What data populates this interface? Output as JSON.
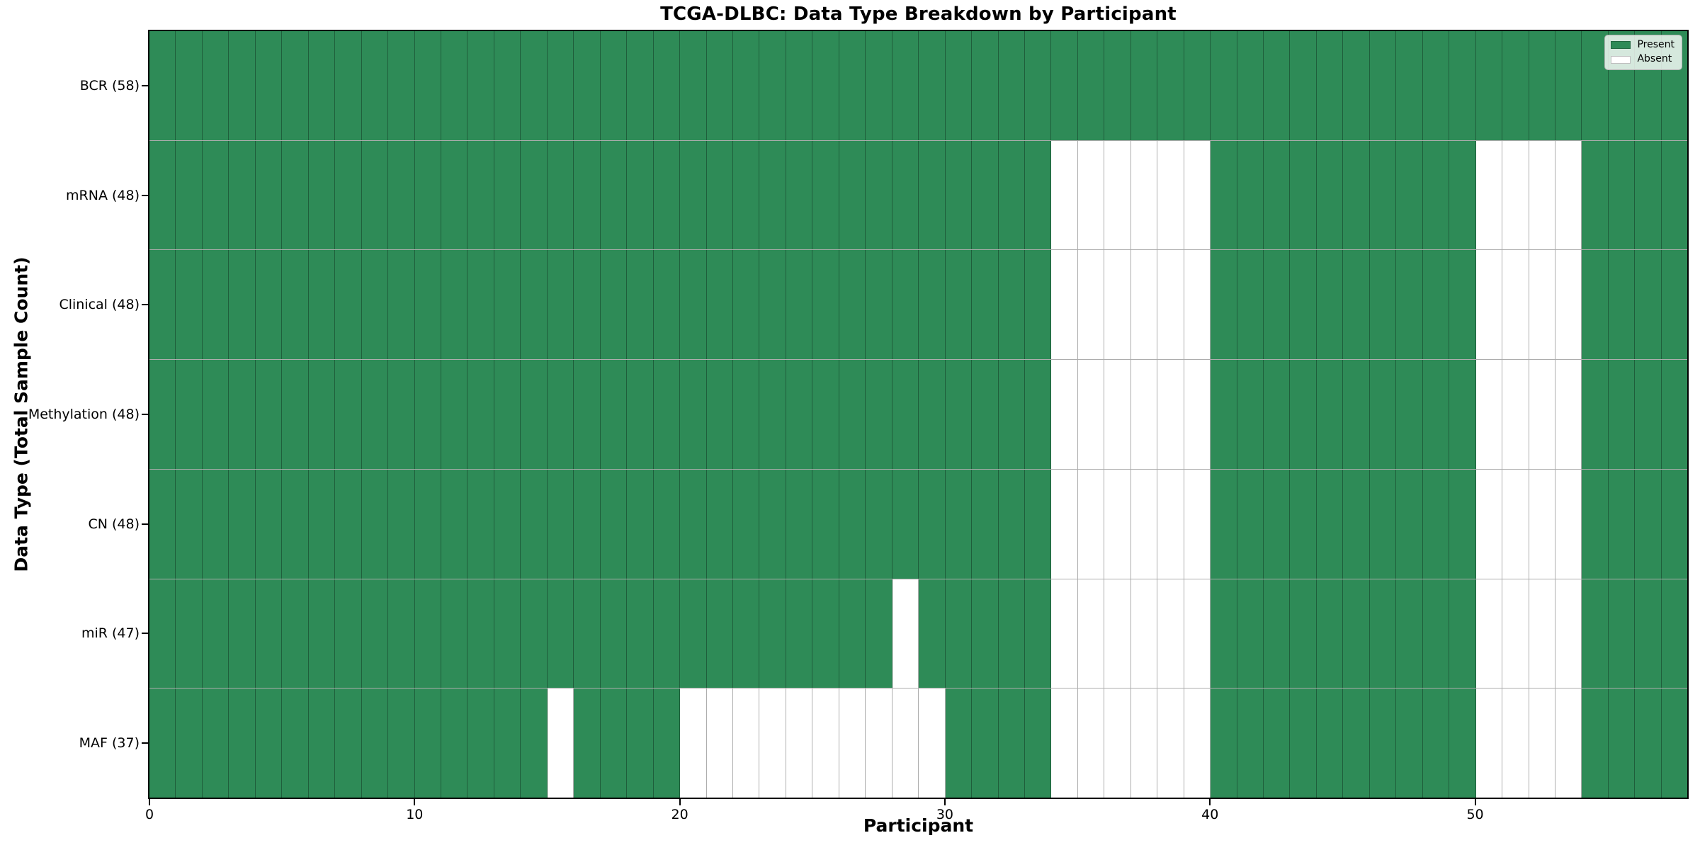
{
  "chart_data": {
    "type": "heatmap",
    "title": "TCGA-DLBC: Data Type Breakdown by Participant",
    "xlabel": "Participant",
    "ylabel": "Data Type (Total Sample Count)",
    "n_participants": 58,
    "x_range": [
      0,
      58
    ],
    "x_ticks": [
      0,
      10,
      20,
      30,
      40,
      50
    ],
    "grid": true,
    "legend": {
      "position": "upper right",
      "entries": [
        {
          "label": "Present",
          "color": "#2E8B57"
        },
        {
          "label": "Absent",
          "color": "#FFFFFF"
        }
      ]
    },
    "colors": {
      "present": "#2E8B57",
      "absent": "#FFFFFF"
    },
    "rows": [
      {
        "name": "bcr",
        "label": "BCR (58)",
        "total": 58,
        "absent": []
      },
      {
        "name": "mrna",
        "label": "mRNA (48)",
        "total": 48,
        "absent": [
          34,
          35,
          36,
          37,
          38,
          39,
          50,
          51,
          52,
          53
        ]
      },
      {
        "name": "clinical",
        "label": "Clinical (48)",
        "total": 48,
        "absent": [
          34,
          35,
          36,
          37,
          38,
          39,
          50,
          51,
          52,
          53
        ]
      },
      {
        "name": "methylation",
        "label": "Methylation (48)",
        "total": 48,
        "absent": [
          34,
          35,
          36,
          37,
          38,
          39,
          50,
          51,
          52,
          53
        ]
      },
      {
        "name": "cn",
        "label": "CN (48)",
        "total": 48,
        "absent": [
          34,
          35,
          36,
          37,
          38,
          39,
          50,
          51,
          52,
          53
        ]
      },
      {
        "name": "mir",
        "label": "miR (47)",
        "total": 47,
        "absent": [
          28,
          34,
          35,
          36,
          37,
          38,
          39,
          50,
          51,
          52,
          53
        ]
      },
      {
        "name": "maf",
        "label": "MAF (37)",
        "total": 37,
        "absent": [
          15,
          20,
          21,
          22,
          23,
          24,
          25,
          26,
          27,
          28,
          29,
          34,
          35,
          36,
          37,
          38,
          39,
          50,
          51,
          52,
          53
        ]
      }
    ]
  }
}
